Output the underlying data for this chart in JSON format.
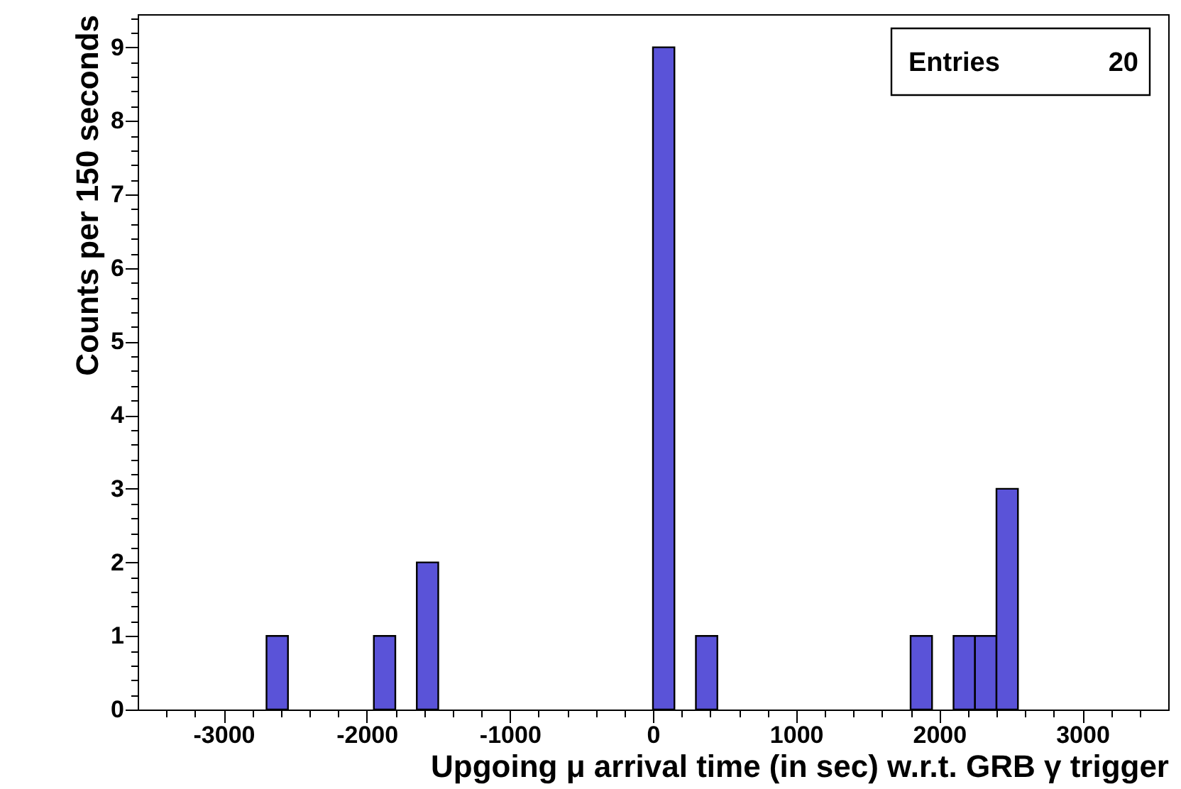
{
  "chart_data": {
    "type": "histogram",
    "xlabel": "Upgoing μ arrival time (in sec) w.r.t. GRB γ trigger",
    "ylabel": "Counts per 150 seconds",
    "bins": [
      -3600,
      -3450,
      -3300,
      -3150,
      -3000,
      -2850,
      -2700,
      -2550,
      -2400,
      -2250,
      -2100,
      -1950,
      -1800,
      -1650,
      -1500,
      -1350,
      -1200,
      -1050,
      -900,
      -750,
      -600,
      -450,
      -300,
      -150,
      0,
      150,
      300,
      450,
      600,
      750,
      900,
      1050,
      1200,
      1350,
      1500,
      1650,
      1800,
      1950,
      2100,
      2250,
      2400,
      2550,
      2700,
      2850,
      3000,
      3150,
      3300,
      3450,
      3600
    ],
    "values": [
      0,
      0,
      0,
      0,
      0,
      0,
      1,
      0,
      0,
      0,
      0,
      1,
      0,
      2,
      0,
      0,
      0,
      0,
      0,
      0,
      0,
      0,
      0,
      0,
      9,
      0,
      1,
      0,
      0,
      0,
      0,
      0,
      0,
      0,
      0,
      0,
      1,
      0,
      1,
      1,
      3,
      0,
      0,
      0,
      0,
      0,
      0,
      0
    ],
    "color": "#5a53d8",
    "xlim": [
      -3600,
      3600
    ],
    "ylim": [
      0,
      9.45
    ],
    "xticks": [
      {
        "value": -3400,
        "label": null
      },
      {
        "value": -3200,
        "label": null
      },
      -3000,
      {
        "value": -2800,
        "label": null
      },
      {
        "value": -2600,
        "label": null
      },
      {
        "value": -2400,
        "label": null
      },
      {
        "value": -2200,
        "label": null
      },
      -2000,
      {
        "value": -1800,
        "label": null
      },
      {
        "value": -1600,
        "label": null
      },
      {
        "value": -1400,
        "label": null
      },
      {
        "value": -1200,
        "label": null
      },
      -1000,
      {
        "value": -800,
        "label": null
      },
      {
        "value": -600,
        "label": null
      },
      {
        "value": -400,
        "label": null
      },
      {
        "value": -200,
        "label": null
      },
      0,
      {
        "value": 200,
        "label": null
      },
      {
        "value": 400,
        "label": null
      },
      {
        "value": 600,
        "label": null
      },
      {
        "value": 800,
        "label": null
      },
      1000,
      {
        "value": 1200,
        "label": null
      },
      {
        "value": 1400,
        "label": null
      },
      {
        "value": 1600,
        "label": null
      },
      {
        "value": 1800,
        "label": null
      },
      2000,
      {
        "value": 2200,
        "label": null
      },
      {
        "value": 2400,
        "label": null
      },
      {
        "value": 2600,
        "label": null
      },
      {
        "value": 2800,
        "label": null
      },
      3000,
      {
        "value": 3200,
        "label": null
      },
      {
        "value": 3400,
        "label": null
      }
    ],
    "yticks": [
      0,
      {
        "value": 0.2,
        "label": null
      },
      {
        "value": 0.4,
        "label": null
      },
      {
        "value": 0.6,
        "label": null
      },
      {
        "value": 0.8,
        "label": null
      },
      1,
      {
        "value": 1.2,
        "label": null
      },
      {
        "value": 1.4,
        "label": null
      },
      {
        "value": 1.6,
        "label": null
      },
      {
        "value": 1.8,
        "label": null
      },
      2,
      {
        "value": 2.2,
        "label": null
      },
      {
        "value": 2.4,
        "label": null
      },
      {
        "value": 2.6,
        "label": null
      },
      {
        "value": 2.8,
        "label": null
      },
      3,
      {
        "value": 3.2,
        "label": null
      },
      {
        "value": 3.4,
        "label": null
      },
      {
        "value": 3.6,
        "label": null
      },
      {
        "value": 3.8,
        "label": null
      },
      4,
      {
        "value": 4.2,
        "label": null
      },
      {
        "value": 4.4,
        "label": null
      },
      {
        "value": 4.6,
        "label": null
      },
      {
        "value": 4.8,
        "label": null
      },
      5,
      {
        "value": 5.2,
        "label": null
      },
      {
        "value": 5.4,
        "label": null
      },
      {
        "value": 5.6,
        "label": null
      },
      {
        "value": 5.8,
        "label": null
      },
      6,
      {
        "value": 6.2,
        "label": null
      },
      {
        "value": 6.4,
        "label": null
      },
      {
        "value": 6.6,
        "label": null
      },
      {
        "value": 6.8,
        "label": null
      },
      7,
      {
        "value": 7.2,
        "label": null
      },
      {
        "value": 7.4,
        "label": null
      },
      {
        "value": 7.6,
        "label": null
      },
      {
        "value": 7.8,
        "label": null
      },
      8,
      {
        "value": 8.2,
        "label": null
      },
      {
        "value": 8.4,
        "label": null
      },
      {
        "value": 8.6,
        "label": null
      },
      {
        "value": 8.8,
        "label": null
      },
      9,
      {
        "value": 9.2,
        "label": null
      },
      {
        "value": 9.4,
        "label": null
      }
    ],
    "annotations": [
      "Entries",
      "20"
    ]
  }
}
